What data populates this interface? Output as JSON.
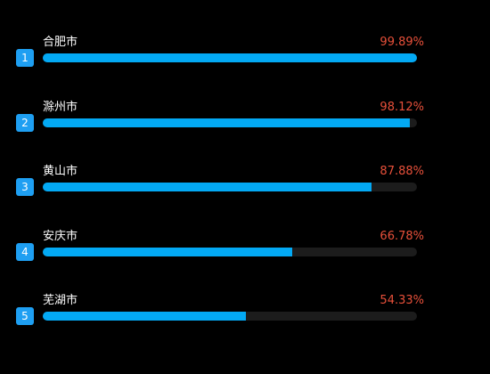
{
  "colors": {
    "background": "#000000",
    "badge": "#1e9ff2",
    "bar_fill": "#03a9f4",
    "bar_track": "#1c1c1c",
    "city_text": "#ffffff",
    "percent_text": "#e8503a"
  },
  "ranking": [
    {
      "rank": "1",
      "city": "合肥市",
      "percent_label": "99.89%",
      "percent": 99.89
    },
    {
      "rank": "2",
      "city": "滁州市",
      "percent_label": "98.12%",
      "percent": 98.12
    },
    {
      "rank": "3",
      "city": "黄山市",
      "percent_label": "87.88%",
      "percent": 87.88
    },
    {
      "rank": "4",
      "city": "安庆市",
      "percent_label": "66.78%",
      "percent": 66.78
    },
    {
      "rank": "5",
      "city": "芜湖市",
      "percent_label": "54.33%",
      "percent": 54.33
    }
  ]
}
